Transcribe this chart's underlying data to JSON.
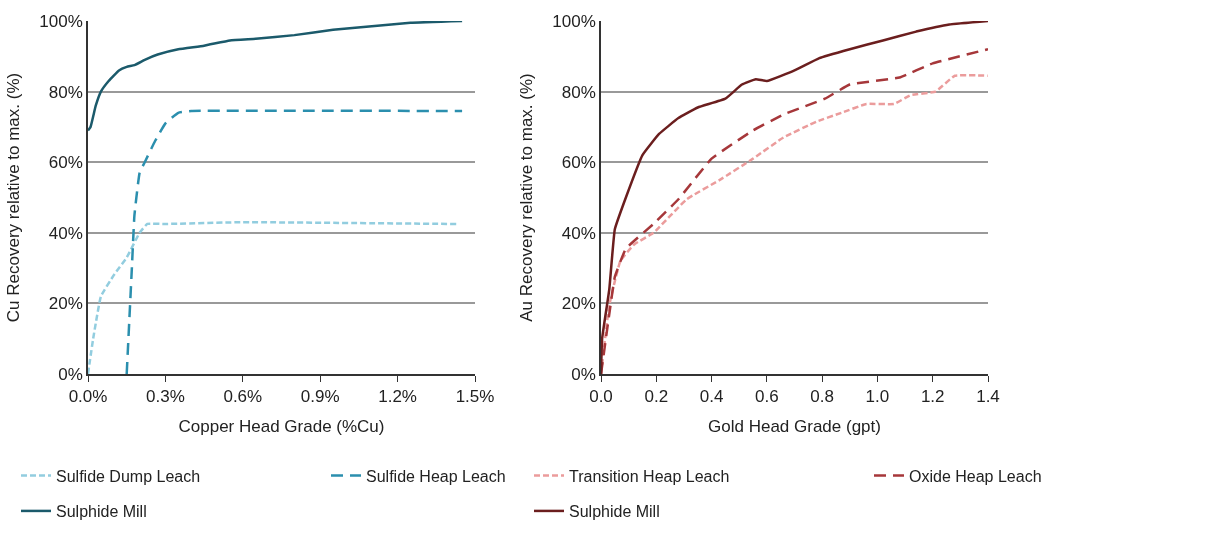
{
  "chart_data": [
    {
      "type": "line",
      "xlabel": "Copper Head Grade (%Cu)",
      "ylabel": "Cu Recovery relative to max. (%)",
      "xlim": [
        0,
        1.5
      ],
      "xticks": [
        {
          "value": 0,
          "label": "0.0%"
        },
        {
          "value": 0.3,
          "label": "0.3%"
        },
        {
          "value": 0.6,
          "label": "0.6%"
        },
        {
          "value": 0.9,
          "label": "0.9%"
        },
        {
          "value": 1.2,
          "label": "1.2%"
        },
        {
          "value": 1.5,
          "label": "1.5%"
        }
      ],
      "ylim": [
        0,
        100
      ],
      "yticks": [
        {
          "value": 0,
          "label": "0%"
        },
        {
          "value": 20,
          "label": "20%"
        },
        {
          "value": 40,
          "label": "40%"
        },
        {
          "value": 60,
          "label": "60%"
        },
        {
          "value": 80,
          "label": "80%"
        },
        {
          "value": 100,
          "label": "100%"
        }
      ],
      "grid": "y",
      "legend": "bottom",
      "series": [
        {
          "name": "Sulfide Dump Leach",
          "color": "#92cddf",
          "line_style": "dotted",
          "x": [
            0,
            0.02,
            0.05,
            0.1,
            0.15,
            0.2,
            0.23,
            0.3,
            0.6,
            1.43
          ],
          "values": [
            0,
            10,
            22,
            28,
            33,
            40,
            42.5,
            42.5,
            43,
            42.5
          ]
        },
        {
          "name": "Sulfide Heap Leach",
          "color": "#2b8fae",
          "line_style": "dashed",
          "x": [
            0.15,
            0.16,
            0.17,
            0.18,
            0.2,
            0.22,
            0.26,
            0.3,
            0.35,
            0.4,
            1.45
          ],
          "values": [
            0,
            15,
            30,
            45,
            57,
            60,
            66,
            71,
            74,
            74.5,
            74.5
          ]
        },
        {
          "name": "Sulphide Mill",
          "color": "#1b5a6b",
          "line_style": "solid",
          "x": [
            0,
            0.01,
            0.03,
            0.05,
            0.08,
            0.12,
            0.15,
            0.18,
            0.22,
            0.27,
            0.35,
            0.45,
            0.55,
            0.65,
            0.8,
            0.95,
            1.1,
            1.25,
            1.45
          ],
          "values": [
            69,
            70,
            76,
            80,
            83,
            86,
            87,
            87.5,
            89,
            90.5,
            92,
            93,
            94.5,
            95,
            96,
            97.5,
            98.5,
            99.5,
            100
          ]
        }
      ]
    },
    {
      "type": "line",
      "xlabel": "Gold Head Grade (gpt)",
      "ylabel": "Au Recovery relative to max. (%)",
      "xlim": [
        0,
        1.4
      ],
      "xticks": [
        {
          "value": 0,
          "label": "0.0"
        },
        {
          "value": 0.2,
          "label": "0.2"
        },
        {
          "value": 0.4,
          "label": "0.4"
        },
        {
          "value": 0.6,
          "label": "0.6"
        },
        {
          "value": 0.8,
          "label": "0.8"
        },
        {
          "value": 1.0,
          "label": "1.0"
        },
        {
          "value": 1.2,
          "label": "1.2"
        },
        {
          "value": 1.4,
          "label": "1.4"
        }
      ],
      "ylim": [
        0,
        100
      ],
      "yticks": [
        {
          "value": 0,
          "label": "0%"
        },
        {
          "value": 20,
          "label": "20%"
        },
        {
          "value": 40,
          "label": "40%"
        },
        {
          "value": 60,
          "label": "60%"
        },
        {
          "value": 80,
          "label": "80%"
        },
        {
          "value": 100,
          "label": "100%"
        }
      ],
      "grid": "y",
      "legend": "bottom",
      "series": [
        {
          "name": "Transition Heap Leach",
          "color": "#eb9c9c",
          "line_style": "dotted",
          "x": [
            0,
            0.03,
            0.07,
            0.12,
            0.19,
            0.31,
            0.43,
            0.55,
            0.66,
            0.78,
            0.87,
            0.96,
            1.06,
            1.12,
            1.21,
            1.28,
            1.4
          ],
          "values": [
            0,
            19.5,
            32,
            36.7,
            40,
            49.5,
            55,
            61,
            67,
            71.5,
            74,
            76.5,
            76.5,
            79,
            80,
            84.5,
            84.5
          ]
        },
        {
          "name": "Oxide Heap Leach",
          "color": "#a6373a",
          "line_style": "dashed",
          "x": [
            0,
            0.03,
            0.05,
            0.09,
            0.19,
            0.28,
            0.4,
            0.55,
            0.66,
            0.81,
            0.9,
            1.08,
            1.2,
            1.4
          ],
          "values": [
            0,
            17,
            27.5,
            35.5,
            42.5,
            49.5,
            61,
            69,
            73.5,
            78,
            82,
            84,
            88,
            92
          ]
        },
        {
          "name": "Sulphide Mill",
          "color": "#6b1e1e",
          "line_style": "solid",
          "x": [
            0,
            0.004,
            0.03,
            0.05,
            0.09,
            0.15,
            0.21,
            0.28,
            0.35,
            0.45,
            0.51,
            0.56,
            0.6,
            0.7,
            0.79,
            0.9,
            1.02,
            1.14,
            1.26,
            1.4
          ],
          "values": [
            0,
            10,
            24,
            41,
            50,
            62,
            68,
            72.5,
            75.5,
            78,
            82,
            83.5,
            83,
            86,
            89.5,
            92,
            94.5,
            97,
            99,
            100
          ]
        }
      ]
    }
  ]
}
